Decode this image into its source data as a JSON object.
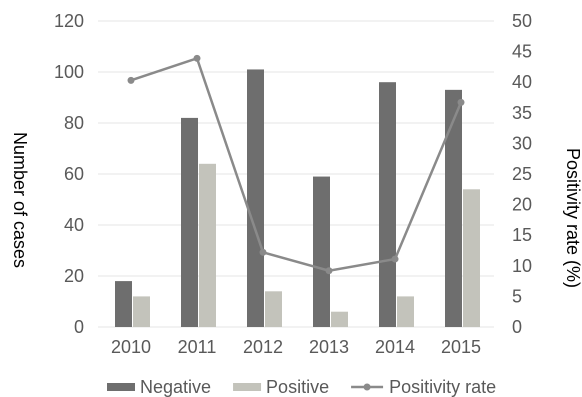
{
  "chart_data": {
    "type": "bar",
    "categories": [
      "2010",
      "2011",
      "2012",
      "2013",
      "2014",
      "2015"
    ],
    "series": [
      {
        "name": "Negative",
        "type": "bar",
        "axis": "left",
        "values": [
          18,
          82,
          101,
          59,
          96,
          93
        ]
      },
      {
        "name": "Positive",
        "type": "bar",
        "axis": "left",
        "values": [
          12,
          64,
          14,
          6,
          12,
          54
        ]
      },
      {
        "name": "Positivity rate",
        "type": "line",
        "axis": "right",
        "values": [
          40.3,
          43.9,
          12.2,
          9.2,
          11.1,
          36.7
        ]
      }
    ],
    "ylabel": "Number of cases",
    "y2label": "Positivity rate (%)",
    "ylim": [
      0,
      120
    ],
    "y2lim": [
      0,
      50
    ],
    "yticks": [
      "0",
      "20",
      "40",
      "60",
      "80",
      "100",
      "120"
    ],
    "y2ticks": [
      "0",
      "5",
      "10",
      "15",
      "20",
      "25",
      "30",
      "35",
      "40",
      "45",
      "50"
    ],
    "grid": true,
    "legend_position": "bottom",
    "colors": {
      "Negative": "#6e6e6e",
      "Positive": "#c3c3bb",
      "Positivity rate": "#8a8a8a"
    }
  }
}
